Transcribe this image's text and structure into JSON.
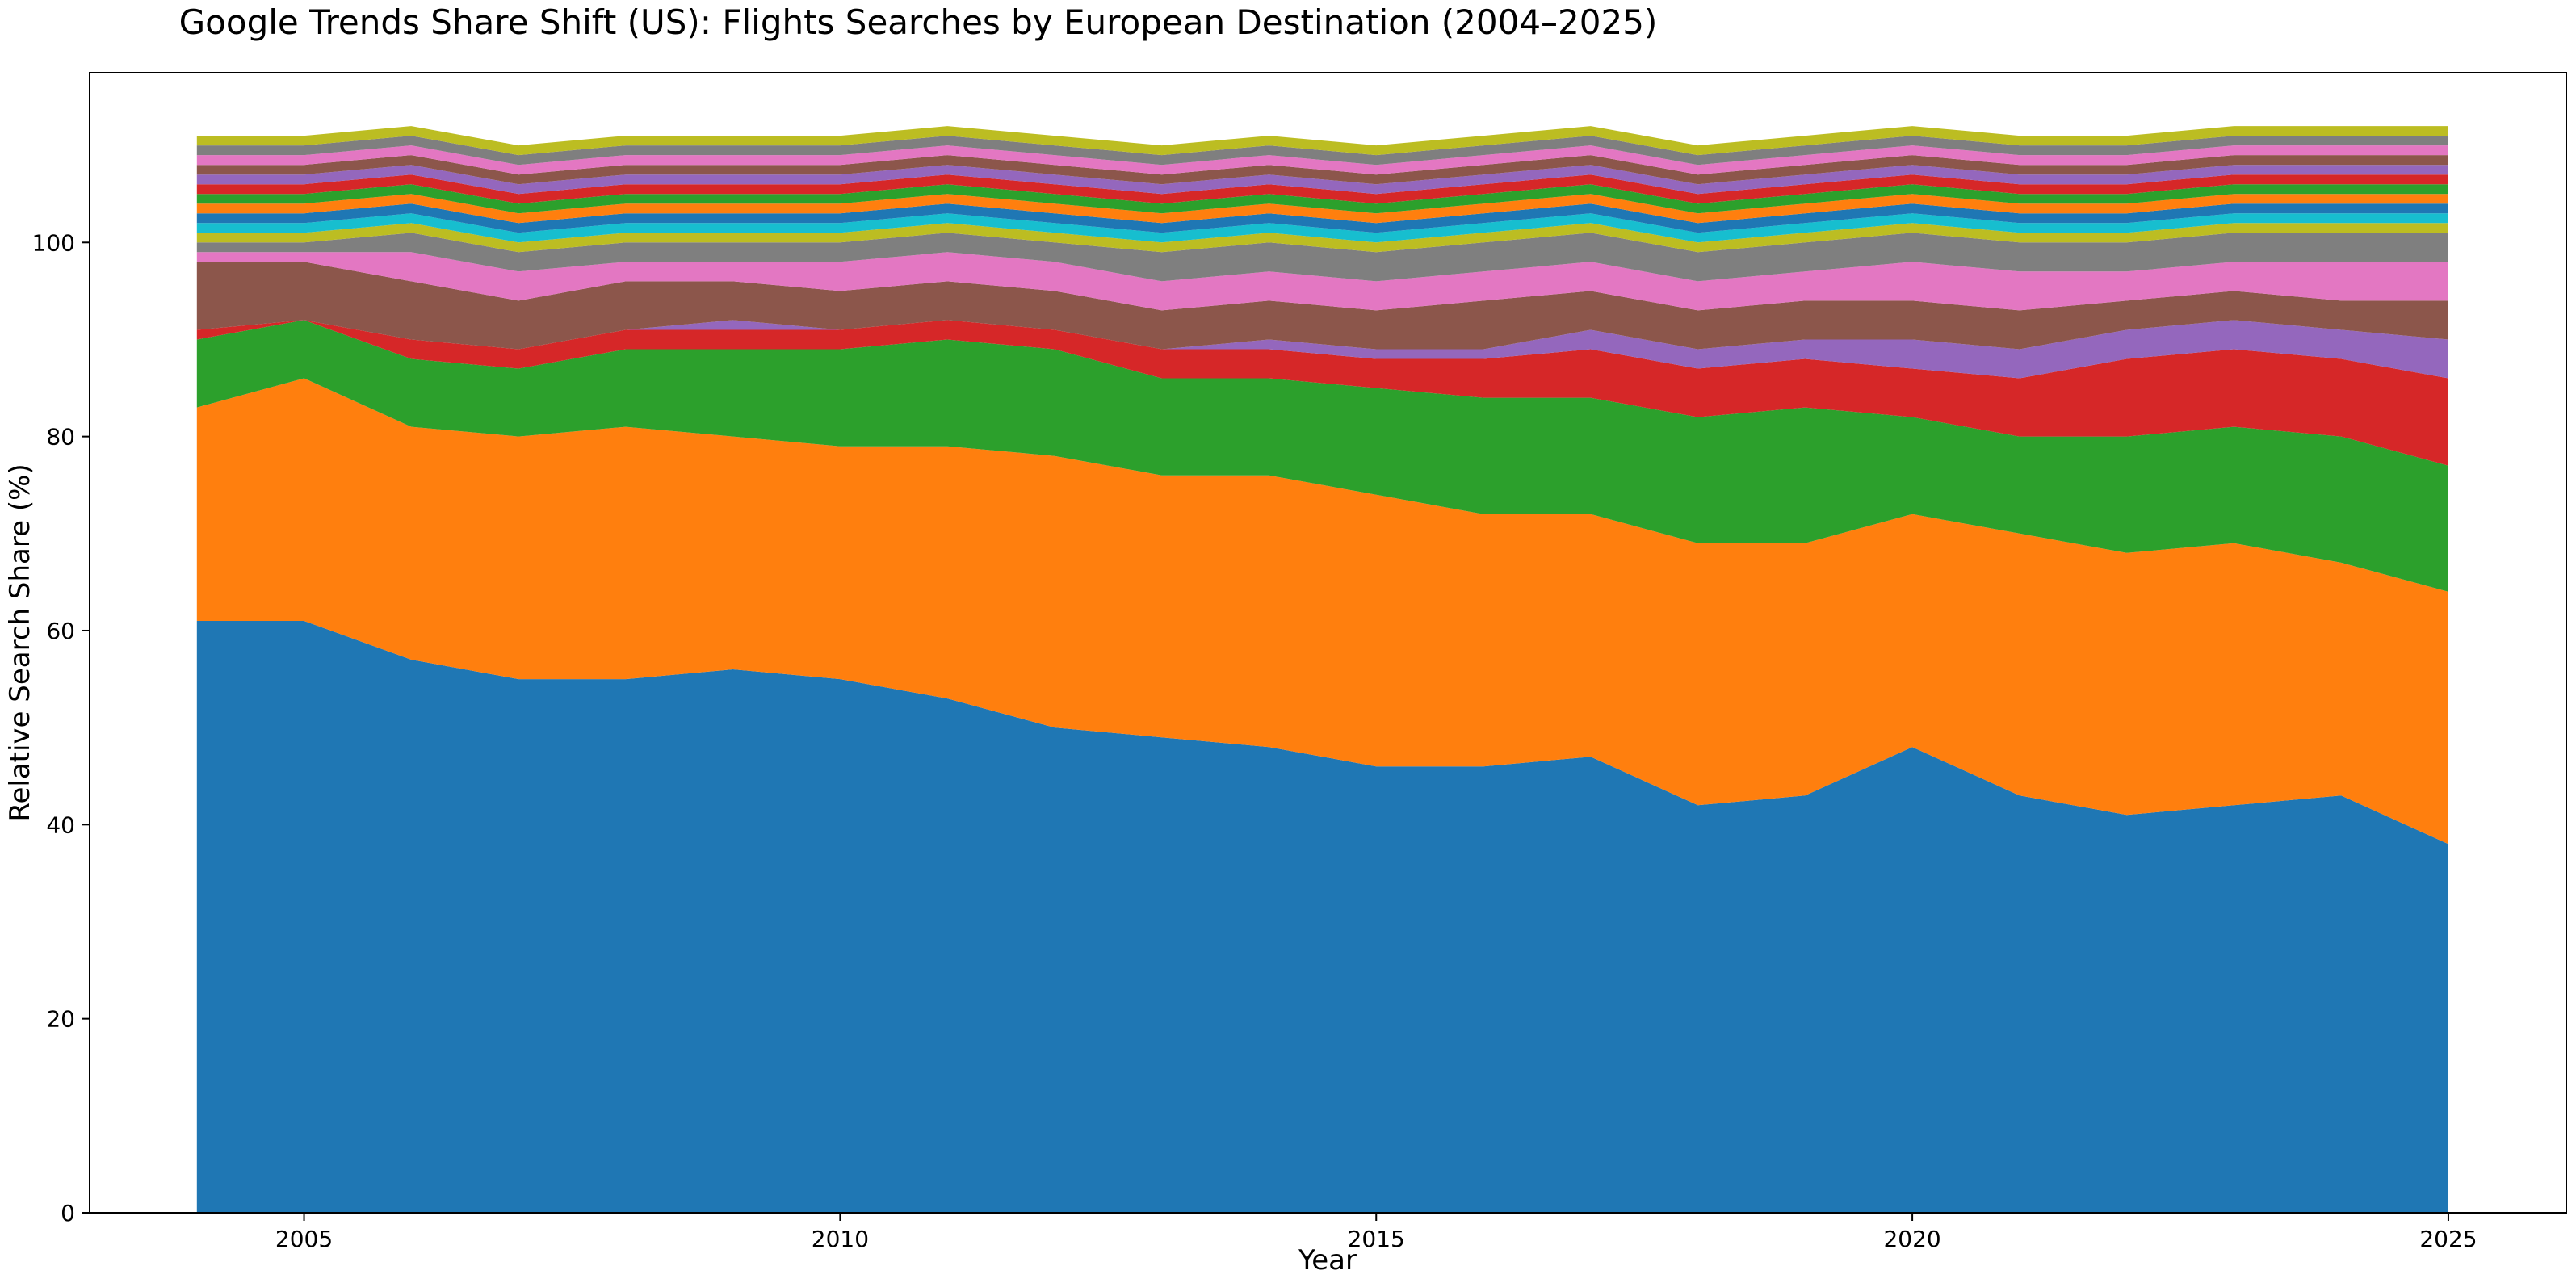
{
  "chart_data": {
    "type": "area",
    "stacked": true,
    "title": "Google Trends Share Shift (US): Flights Searches by European Destination (2004–2025)",
    "xlabel": "Year",
    "ylabel": "Relative Search Share (%)",
    "xlim": [
      2003,
      2026.1
    ],
    "ylim": [
      0,
      117.5
    ],
    "xticks": [
      2005,
      2010,
      2015,
      2020,
      2025
    ],
    "yticks": [
      0,
      20,
      40,
      60,
      80,
      100
    ],
    "grid": false,
    "legend": "none",
    "x": [
      2004,
      2005,
      2006,
      2007,
      2008,
      2009,
      2010,
      2011,
      2012,
      2013,
      2014,
      2015,
      2016,
      2017,
      2018,
      2019,
      2020,
      2021,
      2022,
      2023,
      2024,
      2025
    ],
    "series": [
      {
        "color": "#1f77b4",
        "values": [
          61,
          61,
          57,
          55,
          55,
          56,
          55,
          53,
          50,
          49,
          48,
          46,
          46,
          47,
          42,
          43,
          48,
          43,
          41,
          42,
          43,
          38
        ]
      },
      {
        "color": "#ff7f0e",
        "values": [
          22,
          25,
          24,
          25,
          26,
          24,
          24,
          26,
          28,
          27,
          28,
          28,
          26,
          25,
          27,
          26,
          24,
          27,
          27,
          27,
          24,
          26
        ]
      },
      {
        "color": "#2ca02c",
        "values": [
          7,
          6,
          7,
          7,
          8,
          9,
          10,
          11,
          11,
          10,
          10,
          11,
          12,
          12,
          13,
          14,
          10,
          10,
          12,
          12,
          13,
          13
        ]
      },
      {
        "color": "#d62728",
        "values": [
          1,
          0,
          2,
          2,
          2,
          2,
          2,
          2,
          2,
          3,
          3,
          3,
          4,
          5,
          5,
          5,
          5,
          6,
          8,
          8,
          8,
          9
        ]
      },
      {
        "color": "#9467bd",
        "values": [
          0,
          0,
          0,
          0,
          0,
          1,
          0,
          0,
          0,
          0,
          1,
          1,
          1,
          2,
          2,
          2,
          3,
          3,
          3,
          3,
          3,
          4
        ]
      },
      {
        "color": "#8c564b",
        "values": [
          7,
          6,
          6,
          5,
          5,
          4,
          4,
          4,
          4,
          4,
          4,
          4,
          5,
          4,
          4,
          4,
          4,
          4,
          3,
          3,
          3,
          4
        ]
      },
      {
        "color": "#e377c2",
        "values": [
          1,
          1,
          3,
          3,
          2,
          2,
          3,
          3,
          3,
          3,
          3,
          3,
          3,
          3,
          3,
          3,
          4,
          4,
          3,
          3,
          4,
          4
        ]
      },
      {
        "color": "#7f7f7f",
        "values": [
          1,
          1,
          2,
          2,
          2,
          2,
          2,
          2,
          2,
          3,
          3,
          3,
          3,
          3,
          3,
          3,
          3,
          3,
          3,
          3,
          3,
          3
        ]
      },
      {
        "color": "#bcbd22",
        "values": [
          1,
          1,
          1,
          1,
          1,
          1,
          1,
          1,
          1,
          1,
          1,
          1,
          1,
          1,
          1,
          1,
          1,
          1,
          1,
          1,
          1,
          1
        ]
      },
      {
        "color": "#17becf",
        "values": [
          1,
          1,
          1,
          1,
          1,
          1,
          1,
          1,
          1,
          1,
          1,
          1,
          1,
          1,
          1,
          1,
          1,
          1,
          1,
          1,
          1,
          1
        ]
      },
      {
        "color": "#1f77b4",
        "values": [
          1,
          1,
          1,
          1,
          1,
          1,
          1,
          1,
          1,
          1,
          1,
          1,
          1,
          1,
          1,
          1,
          1,
          1,
          1,
          1,
          1,
          1
        ]
      },
      {
        "color": "#ff7f0e",
        "values": [
          1,
          1,
          1,
          1,
          1,
          1,
          1,
          1,
          1,
          1,
          1,
          1,
          1,
          1,
          1,
          1,
          1,
          1,
          1,
          1,
          1,
          1
        ]
      },
      {
        "color": "#2ca02c",
        "values": [
          1,
          1,
          1,
          1,
          1,
          1,
          1,
          1,
          1,
          1,
          1,
          1,
          1,
          1,
          1,
          1,
          1,
          1,
          1,
          1,
          1,
          1
        ]
      },
      {
        "color": "#d62728",
        "values": [
          1,
          1,
          1,
          1,
          1,
          1,
          1,
          1,
          1,
          1,
          1,
          1,
          1,
          1,
          1,
          1,
          1,
          1,
          1,
          1,
          1,
          1
        ]
      },
      {
        "color": "#9467bd",
        "values": [
          1,
          1,
          1,
          1,
          1,
          1,
          1,
          1,
          1,
          1,
          1,
          1,
          1,
          1,
          1,
          1,
          1,
          1,
          1,
          1,
          1,
          1
        ]
      },
      {
        "color": "#8c564b",
        "values": [
          1,
          1,
          1,
          1,
          1,
          1,
          1,
          1,
          1,
          1,
          1,
          1,
          1,
          1,
          1,
          1,
          1,
          1,
          1,
          1,
          1,
          1
        ]
      },
      {
        "color": "#e377c2",
        "values": [
          1,
          1,
          1,
          1,
          1,
          1,
          1,
          1,
          1,
          1,
          1,
          1,
          1,
          1,
          1,
          1,
          1,
          1,
          1,
          1,
          1,
          1
        ]
      },
      {
        "color": "#7f7f7f",
        "values": [
          1,
          1,
          1,
          1,
          1,
          1,
          1,
          1,
          1,
          1,
          1,
          1,
          1,
          1,
          1,
          1,
          1,
          1,
          1,
          1,
          1,
          1
        ]
      },
      {
        "color": "#bcbd22",
        "values": [
          1,
          1,
          1,
          1,
          1,
          1,
          1,
          1,
          1,
          1,
          1,
          1,
          1,
          1,
          1,
          1,
          1,
          1,
          1,
          1,
          1,
          1
        ]
      }
    ]
  }
}
